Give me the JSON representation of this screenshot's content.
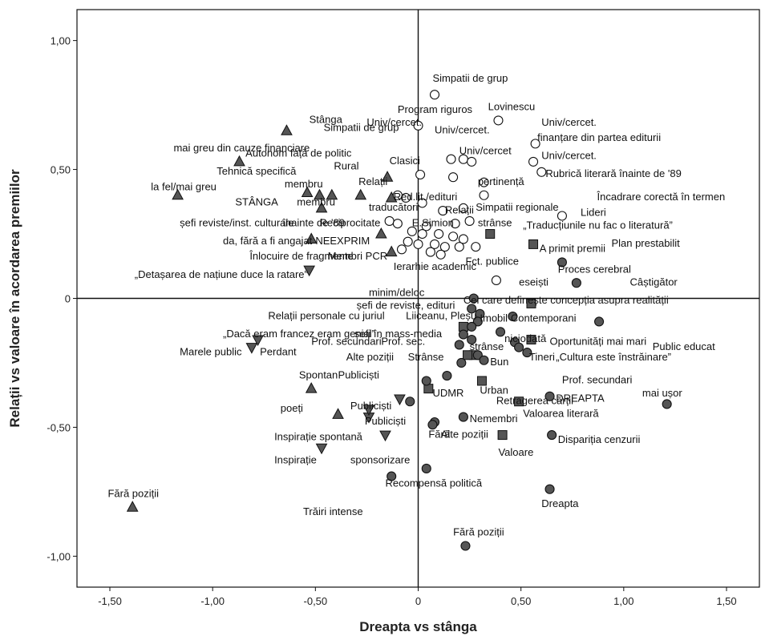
{
  "chart_data": {
    "type": "scatter",
    "xlabel": "Dreapta vs stânga",
    "ylabel": "Relații vs valoare în acordarea premiilor",
    "xlim": [
      -1.66,
      1.66
    ],
    "ylim": [
      -1.12,
      1.12
    ],
    "xticks": [
      "-1,50",
      "-1,00",
      "-0,50",
      "0",
      "0,50",
      "1,00",
      "1,50"
    ],
    "yticks": [
      "1,00",
      "0,50",
      "0",
      "-0,50",
      "-1,00"
    ],
    "grid": false,
    "colors": {
      "filled": "#555555",
      "hollow": "#ffffff",
      "stroke": "#111111"
    },
    "series": [
      {
        "marker": "triangle-up",
        "points": [
          {
            "x": -0.64,
            "y": 0.65,
            "label": "Stânga"
          },
          {
            "x": -0.87,
            "y": 0.53,
            "label": "Autonom față de politic"
          },
          {
            "x": -1.17,
            "y": 0.4,
            "label": "la fel/mai greu"
          },
          {
            "x": -0.54,
            "y": 0.41,
            "label": "membru"
          },
          {
            "x": -0.48,
            "y": 0.4,
            "label": ""
          },
          {
            "x": -0.42,
            "y": 0.4,
            "label": ""
          },
          {
            "x": -0.28,
            "y": 0.4,
            "label": ""
          },
          {
            "x": -0.15,
            "y": 0.47,
            "label": ""
          },
          {
            "x": -0.47,
            "y": 0.35,
            "label": "membru"
          },
          {
            "x": -0.18,
            "y": 0.25,
            "label": ""
          },
          {
            "x": -0.52,
            "y": 0.23,
            "label": ""
          },
          {
            "x": -0.13,
            "y": 0.18,
            "label": "Ierarhie academic"
          },
          {
            "x": -0.13,
            "y": 0.39,
            "label": ""
          },
          {
            "x": -0.52,
            "y": -0.35,
            "label": "Spontan"
          },
          {
            "x": -0.39,
            "y": -0.45,
            "label": "poeți"
          },
          {
            "x": -1.39,
            "y": -0.81,
            "label": "Fără poziții"
          }
        ]
      },
      {
        "marker": "triangle-down",
        "points": [
          {
            "x": -0.53,
            "y": 0.11,
            "label": ""
          },
          {
            "x": -0.78,
            "y": -0.16,
            "label": ""
          },
          {
            "x": -0.81,
            "y": -0.19,
            "label": "Marele public"
          },
          {
            "x": -0.09,
            "y": -0.39,
            "label": ""
          },
          {
            "x": -0.16,
            "y": -0.53,
            "label": ""
          },
          {
            "x": -0.24,
            "y": -0.46,
            "label": "Publiciști"
          },
          {
            "x": -0.47,
            "y": -0.58,
            "label": "Inspirație"
          },
          {
            "x": -0.24,
            "y": -0.43,
            "label": ""
          }
        ]
      },
      {
        "marker": "circle-hollow",
        "points": [
          {
            "x": 0.08,
            "y": 0.79,
            "label": "Simpatii de grup"
          },
          {
            "x": 0.0,
            "y": 0.67,
            "label": "Program riguros"
          },
          {
            "x": 0.39,
            "y": 0.69,
            "label": "Lovinescu"
          },
          {
            "x": 0.57,
            "y": 0.6,
            "label": "finanțare din partea editurii"
          },
          {
            "x": 0.56,
            "y": 0.53,
            "label": "Univ/cercet."
          },
          {
            "x": 0.6,
            "y": 0.49,
            "label": "Rubrică literară înainte de '89"
          },
          {
            "x": 0.01,
            "y": 0.48,
            "label": ""
          },
          {
            "x": 0.22,
            "y": 0.54,
            "label": ""
          },
          {
            "x": 0.16,
            "y": 0.54,
            "label": ""
          },
          {
            "x": 0.26,
            "y": 0.53,
            "label": ""
          },
          {
            "x": 0.17,
            "y": 0.47,
            "label": ""
          },
          {
            "x": 0.32,
            "y": 0.45,
            "label": ""
          },
          {
            "x": 0.32,
            "y": 0.4,
            "label": ""
          },
          {
            "x": -0.1,
            "y": 0.4,
            "label": ""
          },
          {
            "x": -0.06,
            "y": 0.39,
            "label": ""
          },
          {
            "x": 0.02,
            "y": 0.37,
            "label": ""
          },
          {
            "x": 0.22,
            "y": 0.35,
            "label": ""
          },
          {
            "x": 0.12,
            "y": 0.34,
            "label": ""
          },
          {
            "x": 0.7,
            "y": 0.32,
            "label": ""
          },
          {
            "x": 0.25,
            "y": 0.3,
            "label": ""
          },
          {
            "x": -0.14,
            "y": 0.3,
            "label": ""
          },
          {
            "x": -0.1,
            "y": 0.29,
            "label": ""
          },
          {
            "x": 0.04,
            "y": 0.28,
            "label": ""
          },
          {
            "x": 0.18,
            "y": 0.29,
            "label": ""
          },
          {
            "x": -0.03,
            "y": 0.26,
            "label": ""
          },
          {
            "x": 0.02,
            "y": 0.25,
            "label": ""
          },
          {
            "x": 0.1,
            "y": 0.25,
            "label": ""
          },
          {
            "x": 0.17,
            "y": 0.24,
            "label": ""
          },
          {
            "x": 0.22,
            "y": 0.23,
            "label": ""
          },
          {
            "x": -0.05,
            "y": 0.22,
            "label": ""
          },
          {
            "x": 0.0,
            "y": 0.21,
            "label": ""
          },
          {
            "x": 0.08,
            "y": 0.21,
            "label": ""
          },
          {
            "x": 0.13,
            "y": 0.2,
            "label": ""
          },
          {
            "x": 0.2,
            "y": 0.2,
            "label": ""
          },
          {
            "x": 0.28,
            "y": 0.2,
            "label": ""
          },
          {
            "x": -0.08,
            "y": 0.19,
            "label": ""
          },
          {
            "x": 0.06,
            "y": 0.18,
            "label": ""
          },
          {
            "x": 0.11,
            "y": 0.17,
            "label": ""
          },
          {
            "x": 0.38,
            "y": 0.07,
            "label": ""
          }
        ]
      },
      {
        "marker": "square",
        "points": [
          {
            "x": 0.35,
            "y": 0.25,
            "label": ""
          },
          {
            "x": 0.56,
            "y": 0.21,
            "label": "A primit premii"
          },
          {
            "x": 0.55,
            "y": -0.02,
            "label": ""
          },
          {
            "x": 0.55,
            "y": -0.16,
            "label": ""
          },
          {
            "x": 0.22,
            "y": -0.11,
            "label": ""
          },
          {
            "x": 0.27,
            "y": -0.22,
            "label": ""
          },
          {
            "x": 0.24,
            "y": -0.22,
            "label": ""
          },
          {
            "x": 0.31,
            "y": -0.32,
            "label": "Retragerea cărții"
          },
          {
            "x": 0.05,
            "y": -0.35,
            "label": "UDMR"
          },
          {
            "x": 0.49,
            "y": -0.4,
            "label": ""
          },
          {
            "x": 0.41,
            "y": -0.53,
            "label": "Valoare"
          }
        ]
      },
      {
        "marker": "circle-filled",
        "points": [
          {
            "x": 0.7,
            "y": 0.14,
            "label": ""
          },
          {
            "x": 0.77,
            "y": 0.06,
            "label": "Câștigător"
          },
          {
            "x": 0.27,
            "y": 0.0,
            "label": ""
          },
          {
            "x": 0.26,
            "y": -0.04,
            "label": ""
          },
          {
            "x": 0.3,
            "y": -0.06,
            "label": ""
          },
          {
            "x": 0.46,
            "y": -0.07,
            "label": ""
          },
          {
            "x": 0.88,
            "y": -0.09,
            "label": ""
          },
          {
            "x": 0.29,
            "y": -0.09,
            "label": ""
          },
          {
            "x": 0.26,
            "y": -0.11,
            "label": ""
          },
          {
            "x": 0.4,
            "y": -0.13,
            "label": ""
          },
          {
            "x": 0.22,
            "y": -0.14,
            "label": ""
          },
          {
            "x": 0.26,
            "y": -0.16,
            "label": ""
          },
          {
            "x": 0.2,
            "y": -0.18,
            "label": ""
          },
          {
            "x": 0.47,
            "y": -0.17,
            "label": ""
          },
          {
            "x": 0.49,
            "y": -0.19,
            "label": ""
          },
          {
            "x": 0.53,
            "y": -0.21,
            "label": ""
          },
          {
            "x": 0.29,
            "y": -0.22,
            "label": ""
          },
          {
            "x": 0.21,
            "y": -0.25,
            "label": ""
          },
          {
            "x": 0.32,
            "y": -0.24,
            "label": ""
          },
          {
            "x": 0.14,
            "y": -0.3,
            "label": ""
          },
          {
            "x": 0.04,
            "y": -0.32,
            "label": ""
          },
          {
            "x": 0.64,
            "y": -0.38,
            "label": "DREAPTA"
          },
          {
            "x": -0.04,
            "y": -0.4,
            "label": ""
          },
          {
            "x": 1.21,
            "y": -0.41,
            "label": "mai ușor"
          },
          {
            "x": 0.08,
            "y": -0.48,
            "label": ""
          },
          {
            "x": 0.22,
            "y": -0.46,
            "label": "Nemembri"
          },
          {
            "x": 0.07,
            "y": -0.49,
            "label": ""
          },
          {
            "x": 0.65,
            "y": -0.53,
            "label": ""
          },
          {
            "x": 0.04,
            "y": -0.66,
            "label": ""
          },
          {
            "x": -0.13,
            "y": -0.69,
            "label": ""
          },
          {
            "x": 0.64,
            "y": -0.74,
            "label": "Dreapta"
          },
          {
            "x": 0.23,
            "y": -0.96,
            "label": "Fără poziții"
          }
        ]
      }
    ],
    "annotations": [
      {
        "x": -0.53,
        "y": 0.68,
        "text": "Stânga"
      },
      {
        "x": -0.46,
        "y": 0.65,
        "text": "Simpatii de grup"
      },
      {
        "x": -0.84,
        "y": 0.55,
        "text": "Autonom față de politic"
      },
      {
        "x": -1.19,
        "y": 0.57,
        "text": "mai greu din cauze financiare"
      },
      {
        "x": -0.25,
        "y": 0.67,
        "text": "Univ/cercet."
      },
      {
        "x": -1.3,
        "y": 0.42,
        "text": "la fel/mai greu"
      },
      {
        "x": -0.98,
        "y": 0.48,
        "text": "Tehnică specifică"
      },
      {
        "x": -0.41,
        "y": 0.5,
        "text": "Rural"
      },
      {
        "x": -0.65,
        "y": 0.43,
        "text": "membru"
      },
      {
        "x": -0.29,
        "y": 0.44,
        "text": "Relații"
      },
      {
        "x": -0.89,
        "y": 0.36,
        "text": "STÂNGA"
      },
      {
        "x": -0.59,
        "y": 0.36,
        "text": "membru"
      },
      {
        "x": -1.16,
        "y": 0.28,
        "text": "șefi reviste/inst. culturale"
      },
      {
        "x": -0.66,
        "y": 0.28,
        "text": "înainte de '89"
      },
      {
        "x": -0.48,
        "y": 0.28,
        "text": "Reciprocitate"
      },
      {
        "x": -0.24,
        "y": 0.34,
        "text": "traducători"
      },
      {
        "x": -0.95,
        "y": 0.21,
        "text": "da, fără a fi angajat"
      },
      {
        "x": -0.5,
        "y": 0.21,
        "text": "NEEXPRIM"
      },
      {
        "x": -0.82,
        "y": 0.15,
        "text": "Înlocuire de fragmente"
      },
      {
        "x": -1.38,
        "y": 0.08,
        "text": "„Detașarea de națiune duce la ratare”"
      },
      {
        "x": -0.44,
        "y": 0.15,
        "text": "Membri PCR"
      },
      {
        "x": -0.12,
        "y": 0.11,
        "text": "Ierarhie academic"
      },
      {
        "x": -0.24,
        "y": 0.01,
        "text": "minim/deloc"
      },
      {
        "x": -0.3,
        "y": -0.04,
        "text": "șefi de reviste, edituri"
      },
      {
        "x": -0.73,
        "y": -0.08,
        "text": "Relații personale cu juriul"
      },
      {
        "x": -0.06,
        "y": -0.08,
        "text": "Liiceanu, Pleșu"
      },
      {
        "x": -0.95,
        "y": -0.15,
        "text": "„Dacă eram francez eram genial”"
      },
      {
        "x": -0.31,
        "y": -0.15,
        "text": "șefi în mass-media"
      },
      {
        "x": -1.16,
        "y": -0.22,
        "text": "Marele public"
      },
      {
        "x": -0.77,
        "y": -0.22,
        "text": "Perdant"
      },
      {
        "x": -0.52,
        "y": -0.18,
        "text": "Prof. secundari"
      },
      {
        "x": -0.18,
        "y": -0.18,
        "text": "Prof. sec."
      },
      {
        "x": -0.35,
        "y": -0.24,
        "text": "Alte poziții"
      },
      {
        "x": -0.05,
        "y": -0.24,
        "text": "Strânse"
      },
      {
        "x": -0.58,
        "y": -0.31,
        "text": "Spontan"
      },
      {
        "x": -0.39,
        "y": -0.31,
        "text": "Publiciști"
      },
      {
        "x": -0.67,
        "y": -0.44,
        "text": "poeți"
      },
      {
        "x": -0.33,
        "y": -0.43,
        "text": "Publiciști"
      },
      {
        "x": -0.26,
        "y": -0.49,
        "text": "Publiciști"
      },
      {
        "x": -0.7,
        "y": -0.55,
        "text": "Inspirație spontană"
      },
      {
        "x": -0.7,
        "y": -0.64,
        "text": "Inspirație"
      },
      {
        "x": -0.33,
        "y": -0.64,
        "text": "sponsorizare"
      },
      {
        "x": 0.05,
        "y": -0.54,
        "text": "Fără"
      },
      {
        "x": 0.11,
        "y": -0.54,
        "text": "Alte poziții"
      },
      {
        "x": -0.56,
        "y": -0.84,
        "text": "Trăiri intense"
      },
      {
        "x": -0.16,
        "y": -0.73,
        "text": "Recompensă politică"
      },
      {
        "x": -1.51,
        "y": -0.77,
        "text": "Fără poziții"
      },
      {
        "x": 0.07,
        "y": 0.84,
        "text": "Simpatii de grup"
      },
      {
        "x": -0.1,
        "y": 0.72,
        "text": "Program riguros"
      },
      {
        "x": 0.34,
        "y": 0.73,
        "text": "Lovinescu"
      },
      {
        "x": 0.08,
        "y": 0.64,
        "text": "Univ/cercet."
      },
      {
        "x": 0.6,
        "y": 0.67,
        "text": "Univ/cercet."
      },
      {
        "x": 0.58,
        "y": 0.61,
        "text": "finanțare din partea editurii"
      },
      {
        "x": -0.14,
        "y": 0.52,
        "text": "Clasici"
      },
      {
        "x": 0.2,
        "y": 0.56,
        "text": "Univ/cercet"
      },
      {
        "x": 0.6,
        "y": 0.54,
        "text": "Univ/cercet."
      },
      {
        "x": 0.62,
        "y": 0.47,
        "text": "Rubrică literară înainte de '89"
      },
      {
        "x": 0.29,
        "y": 0.44,
        "text": "pertinență"
      },
      {
        "x": -0.12,
        "y": 0.38,
        "text": "Red.lit./edituri"
      },
      {
        "x": 0.87,
        "y": 0.38,
        "text": "Încadrare corectă în termen"
      },
      {
        "x": 0.13,
        "y": 0.33,
        "text": "Relații"
      },
      {
        "x": 0.28,
        "y": 0.34,
        "text": "Simpatii regionale"
      },
      {
        "x": 0.79,
        "y": 0.32,
        "text": "Lideri"
      },
      {
        "x": -0.03,
        "y": 0.28,
        "text": "E.Simion"
      },
      {
        "x": 0.29,
        "y": 0.28,
        "text": "strânse"
      },
      {
        "x": 0.51,
        "y": 0.27,
        "text": "„Traducțiunile nu fac o literatură”"
      },
      {
        "x": 0.94,
        "y": 0.2,
        "text": "Plan prestabilit"
      },
      {
        "x": 0.23,
        "y": 0.13,
        "text": "Fct. publice"
      },
      {
        "x": 0.59,
        "y": 0.18,
        "text": "A primit premii"
      },
      {
        "x": 0.68,
        "y": 0.1,
        "text": "Proces cerebral"
      },
      {
        "x": 0.49,
        "y": 0.05,
        "text": "eseiști"
      },
      {
        "x": 1.03,
        "y": 0.05,
        "text": "Câștigător"
      },
      {
        "x": 0.22,
        "y": -0.02,
        "text": "Cel care definește concepția asupra realității"
      },
      {
        "x": 0.3,
        "y": -0.09,
        "text": "Imobil"
      },
      {
        "x": 0.45,
        "y": -0.09,
        "text": "Contemporani"
      },
      {
        "x": 1.14,
        "y": -0.2,
        "text": "Public educat"
      },
      {
        "x": 0.42,
        "y": -0.17,
        "text": "niciodată"
      },
      {
        "x": 0.64,
        "y": -0.18,
        "text": "Oportunități mai mari"
      },
      {
        "x": 0.25,
        "y": -0.2,
        "text": "strânse"
      },
      {
        "x": 0.54,
        "y": -0.24,
        "text": "Tineri"
      },
      {
        "x": 0.67,
        "y": -0.24,
        "text": "„Cultura este înstrăinare”"
      },
      {
        "x": 0.35,
        "y": -0.26,
        "text": "Bun"
      },
      {
        "x": 0.7,
        "y": -0.33,
        "text": "Prof. secundari"
      },
      {
        "x": 0.3,
        "y": -0.37,
        "text": "Urban"
      },
      {
        "x": 0.07,
        "y": -0.38,
        "text": "UDMR"
      },
      {
        "x": 0.38,
        "y": -0.41,
        "text": "Retragerea cărții"
      },
      {
        "x": 0.67,
        "y": -0.4,
        "text": "DREAPTA"
      },
      {
        "x": 1.09,
        "y": -0.38,
        "text": "mai ușor"
      },
      {
        "x": 0.25,
        "y": -0.48,
        "text": "Nemembri"
      },
      {
        "x": 0.51,
        "y": -0.46,
        "text": "Valoarea literară"
      },
      {
        "x": 0.68,
        "y": -0.56,
        "text": "Dispariția cenzurii"
      },
      {
        "x": 0.39,
        "y": -0.61,
        "text": "Valoare"
      },
      {
        "x": 0.6,
        "y": -0.81,
        "text": "Dreapta"
      },
      {
        "x": 0.17,
        "y": -0.92,
        "text": "Fără poziții"
      }
    ]
  }
}
